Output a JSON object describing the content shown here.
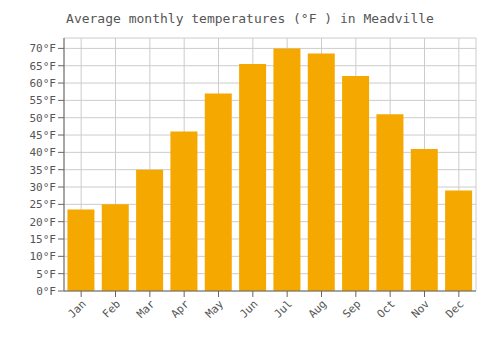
{
  "chart_data": {
    "type": "bar",
    "title": "Average monthly temperatures (°F ) in Meadville",
    "categories": [
      "Jan",
      "Feb",
      "Mar",
      "Apr",
      "May",
      "Jun",
      "Jul",
      "Aug",
      "Sep",
      "Oct",
      "Nov",
      "Dec"
    ],
    "values": [
      23.5,
      25.0,
      35.0,
      46.0,
      57.0,
      65.5,
      70.0,
      68.5,
      62.0,
      51.0,
      41.0,
      29.0
    ],
    "color": "#F5A800",
    "ylim": [
      0,
      73
    ],
    "yticks": [
      {
        "value": 0,
        "label": "0°F"
      },
      {
        "value": 5,
        "label": "5°F"
      },
      {
        "value": 10,
        "label": "10°F"
      },
      {
        "value": 15,
        "label": "15°F"
      },
      {
        "value": 20,
        "label": "20°F"
      },
      {
        "value": 25,
        "label": "25°F"
      },
      {
        "value": 30,
        "label": "30°F"
      },
      {
        "value": 35,
        "label": "35°F"
      },
      {
        "value": 40,
        "label": "40°F"
      },
      {
        "value": 45,
        "label": "45°F"
      },
      {
        "value": 50,
        "label": "50°F"
      },
      {
        "value": 55,
        "label": "55°F"
      },
      {
        "value": 60,
        "label": "60°F"
      },
      {
        "value": 65,
        "label": "65°F"
      },
      {
        "value": 70,
        "label": "70°F"
      }
    ],
    "grid": true
  }
}
